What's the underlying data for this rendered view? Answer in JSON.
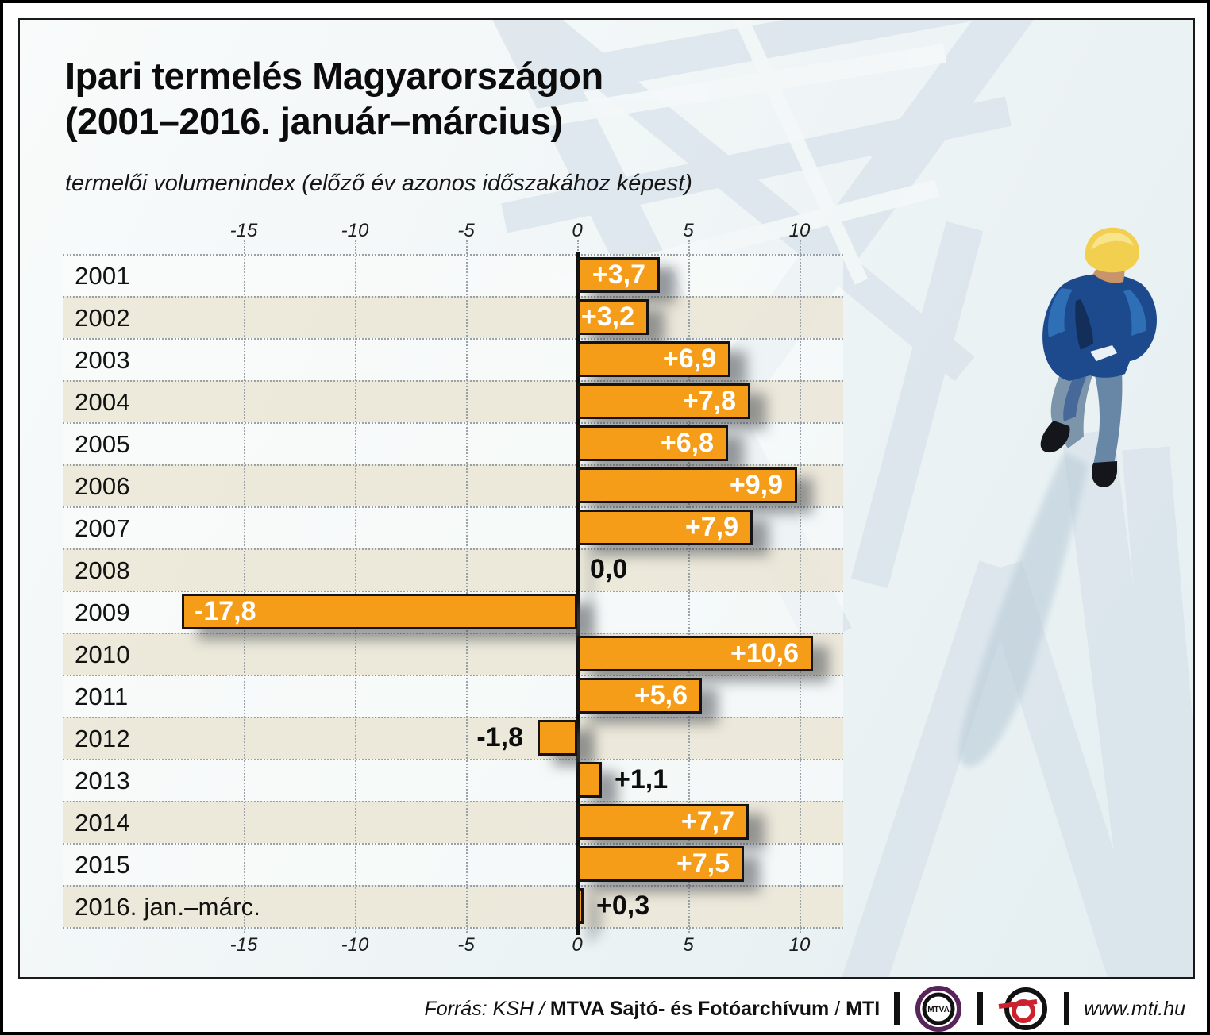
{
  "title": {
    "line1": "Ipari termelés Magyarországon",
    "line2": "(2001–2016. január–március)"
  },
  "subtitle": "termelői volumenindex (előző év azonos időszakához képest)",
  "chart_data": {
    "type": "bar",
    "orientation": "horizontal",
    "title": "Ipari termelés Magyarországon (2001–2016. január–március)",
    "xlabel": "termelői volumenindex (előző év azonos időszakához képest)",
    "categories": [
      "2001",
      "2002",
      "2003",
      "2004",
      "2005",
      "2006",
      "2007",
      "2008",
      "2009",
      "2010",
      "2011",
      "2012",
      "2013",
      "2014",
      "2015",
      "2016. jan.–márc."
    ],
    "values": [
      3.7,
      3.2,
      6.9,
      7.8,
      6.8,
      9.9,
      7.9,
      0.0,
      -17.8,
      10.6,
      5.6,
      -1.8,
      1.1,
      7.7,
      7.5,
      0.3
    ],
    "value_labels": [
      "+3,7",
      "+3,2",
      "+6,9",
      "+7,8",
      "+6,8",
      "+9,9",
      "+7,9",
      "0,0",
      "-17,8",
      "+10,6",
      "+5,6",
      "-1,8",
      "+1,1",
      "+7,7",
      "+7,5",
      "+0,3"
    ],
    "label_placement": [
      "in-right",
      "in-right",
      "in-right",
      "in-right",
      "in-right",
      "in-right",
      "in-right",
      "out-right",
      "in-left",
      "in-right",
      "in-right",
      "out-left",
      "out-right",
      "in-right",
      "in-right",
      "out-right"
    ],
    "x_ticks": [
      -15,
      -10,
      -5,
      0,
      5,
      10
    ],
    "x_tick_labels": [
      "-15",
      "-10",
      "-5",
      "0",
      "5",
      "10"
    ],
    "xlim": [
      -18.5,
      11.5
    ],
    "grid": "vertical-dotted",
    "legend": "none",
    "bar_color": "#F59C18",
    "bar_border_color": "#141414",
    "stripe_color": "#ECE7D8"
  },
  "footer": {
    "source_italic": "Forrás: KSH",
    "sep1": " / ",
    "archive": "MTVA Sajtó- és Fotóarchívum",
    "sep2": " / ",
    "agency": "MTI",
    "mtva_logo_text": "MTVA",
    "website": "www.mti.hu"
  },
  "colors": {
    "accent_orange": "#F59C18",
    "stripe_beige": "#ECE7D8",
    "panel_bg": "#EDF3F5",
    "art_blue": "#D6E1E9",
    "logo_purple": "#58255B",
    "logo_red": "#CC2230"
  }
}
